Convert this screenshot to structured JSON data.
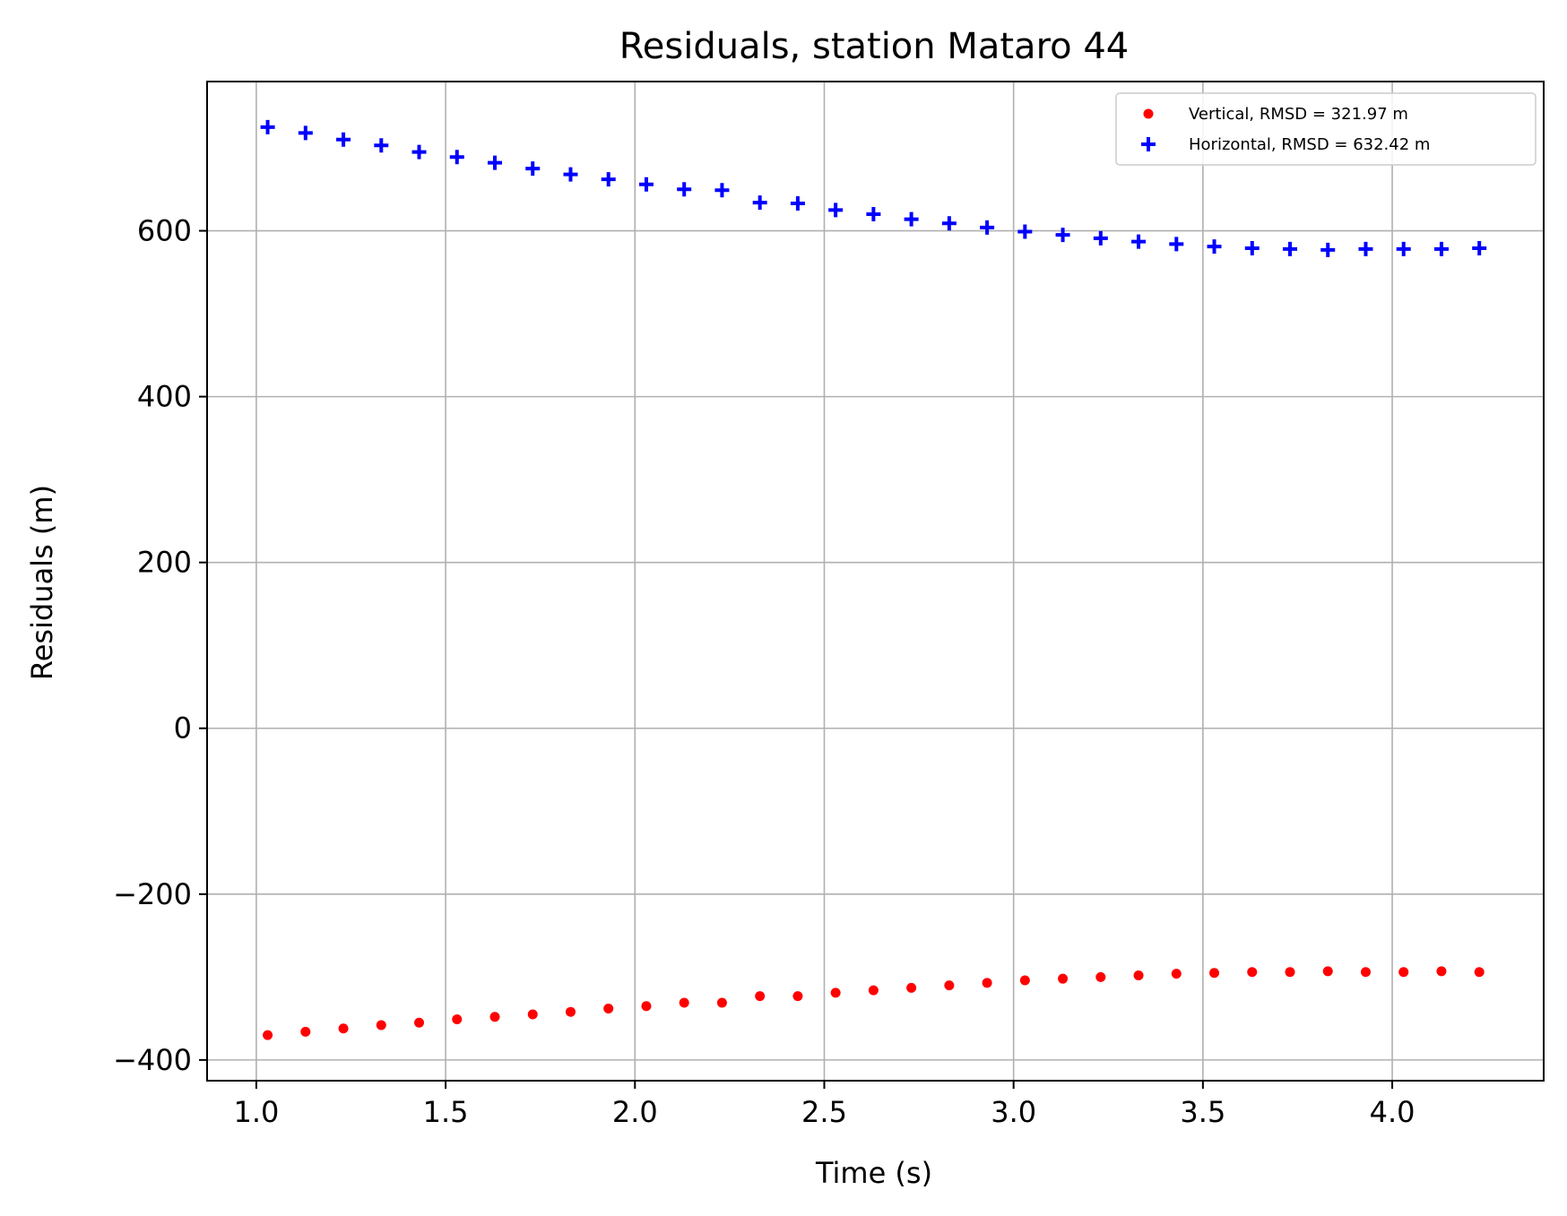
{
  "chart_data": {
    "type": "scatter",
    "title": "Residuals, station Mataro 44",
    "xlabel": "Time (s)",
    "ylabel": "Residuals (m)",
    "xlim": [
      0.87,
      4.4
    ],
    "ylim": [
      -425,
      780
    ],
    "xticks": [
      1.0,
      1.5,
      2.0,
      2.5,
      3.0,
      3.5,
      4.0
    ],
    "xtick_labels": [
      "1.0",
      "1.5",
      "2.0",
      "2.5",
      "3.0",
      "3.5",
      "4.0"
    ],
    "yticks": [
      -400,
      -200,
      0,
      200,
      400,
      600
    ],
    "ytick_labels": [
      "−400",
      "−200",
      "0",
      "200",
      "400",
      "600"
    ],
    "grid": true,
    "legend_position": "top-right",
    "series": [
      {
        "name": "Vertical, RMSD = 321.97 m",
        "marker": "dot",
        "color": "#ff0000",
        "x": [
          1.03,
          1.13,
          1.23,
          1.33,
          1.43,
          1.53,
          1.63,
          1.73,
          1.83,
          1.93,
          2.03,
          2.13,
          2.23,
          2.33,
          2.43,
          2.53,
          2.63,
          2.73,
          2.83,
          2.93,
          3.03,
          3.13,
          3.23,
          3.33,
          3.43,
          3.53,
          3.63,
          3.73,
          3.83,
          3.93,
          4.03,
          4.13,
          4.23
        ],
        "y": [
          -370,
          -366,
          -362,
          -358,
          -355,
          -351,
          -348,
          -345,
          -342,
          -338,
          -335,
          -331,
          -331,
          -323,
          -323,
          -319,
          -316,
          -313,
          -310,
          -307,
          -304,
          -302,
          -300,
          -298,
          -296,
          -295,
          -294,
          -294,
          -293,
          -294,
          -294,
          -293,
          -294
        ]
      },
      {
        "name": "Horizontal, RMSD = 632.42 m",
        "marker": "plus",
        "color": "#0000ff",
        "x": [
          1.03,
          1.13,
          1.23,
          1.33,
          1.43,
          1.53,
          1.63,
          1.73,
          1.83,
          1.93,
          2.03,
          2.13,
          2.23,
          2.33,
          2.43,
          2.53,
          2.63,
          2.73,
          2.83,
          2.93,
          3.03,
          3.13,
          3.23,
          3.33,
          3.43,
          3.53,
          3.63,
          3.73,
          3.83,
          3.93,
          4.03,
          4.13,
          4.23
        ],
        "y": [
          725,
          718,
          710,
          703,
          695,
          689,
          682,
          675,
          668,
          662,
          656,
          650,
          649,
          634,
          633,
          625,
          620,
          614,
          609,
          604,
          599,
          595,
          591,
          587,
          584,
          581,
          579,
          578,
          577,
          578,
          578,
          578,
          579
        ]
      }
    ]
  }
}
